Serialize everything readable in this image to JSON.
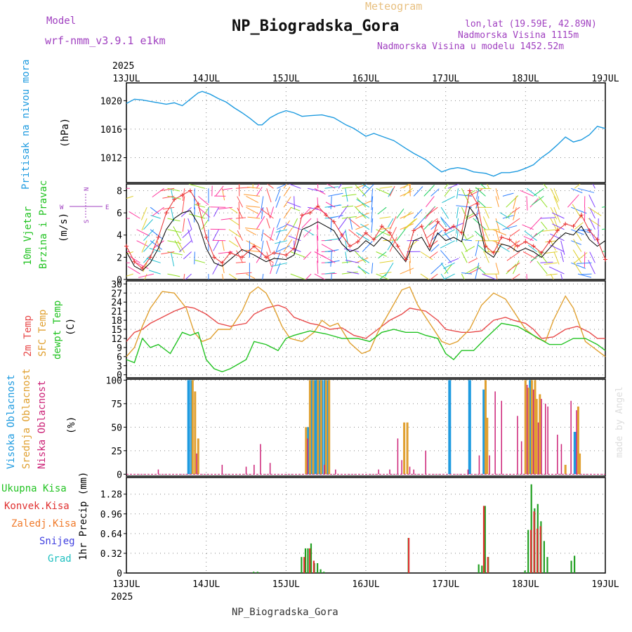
{
  "header": {
    "model_label": "Model",
    "model_name": "wrf-nmm_v3.9.1 e1km",
    "subtitle": "Meteogram",
    "station": "NP_Biogradska_Gora",
    "lonlat": "lon,lat (19.59E, 42.89N)",
    "altitude": "Nadmorska Visina 1115m",
    "model_altitude": "Nadmorska Visina u modelu 1452.52m",
    "watermark": "made by Angel",
    "footer_station": "NP_Biogradska_Gora"
  },
  "colors": {
    "pressure": "#1e9be0",
    "wind_label": "#22c322",
    "wind_speed": "#000000",
    "gust": "#e83030",
    "temp2m": "#e84a4a",
    "sfc": "#e0a030",
    "dewpt": "#22c322",
    "high_cloud": "#1e9be0",
    "mid_cloud": "#e0a030",
    "low_cloud": "#cc2277",
    "total_precip": "#22a022",
    "conv_precip": "#e03030",
    "frozen_precip": "#f07a2a",
    "snow": "#4040e0",
    "hail": "#20c0c0",
    "model_color": "#a040c0",
    "title_color": "#e8c080"
  },
  "time_axis": {
    "year": "2025",
    "labels": [
      "13JUL",
      "14JUL",
      "15JUL",
      "16JUL",
      "17JUL",
      "18JUL",
      "19JUL"
    ]
  },
  "panels": {
    "pressure": {
      "label": "Pritisak na nivou mora",
      "unit": "(hPa)",
      "ticks": [
        "1012",
        "1016",
        "1020"
      ],
      "ylim": [
        1008.5,
        1022.5
      ]
    },
    "wind": {
      "label1": "10m Vjetar",
      "label2": "Brzina i Pravac",
      "unit": "(m/s)",
      "compass": {
        "n": "N",
        "s": "S",
        "e": "E",
        "w": "W"
      },
      "ticks": [
        "0",
        "2",
        "4",
        "6",
        "8"
      ],
      "ylim": [
        0,
        8.6
      ]
    },
    "temp": {
      "label_2m": "2m Temp",
      "label_sfc": "SFC Temp",
      "label_dew": "dewpt Temp",
      "unit": "(C)",
      "ticks": [
        "0",
        "3",
        "6",
        "9",
        "12",
        "15",
        "18",
        "21",
        "24",
        "27",
        "30"
      ],
      "ylim": [
        -1,
        31
      ]
    },
    "cloud": {
      "label_high": "Visoka Oblacnost",
      "label_mid": "Srednja Oblacnost",
      "label_low": "Niska Oblacnost",
      "unit": "(%)",
      "ticks": [
        "0",
        "25",
        "50",
        "75",
        "100"
      ],
      "ylim": [
        -2,
        101
      ]
    },
    "precip": {
      "label_total": "Ukupna Kisa",
      "label_conv": "Konvek.Kisa",
      "label_frozen": "Zaledj.Kisa",
      "label_snow": "Snijeg",
      "label_hail": "Grad",
      "unit": "1hr Precip (mm)",
      "ticks": [
        "0",
        "0.32",
        "0.64",
        "0.96",
        "1.28"
      ],
      "ylim": [
        0,
        1.55
      ]
    }
  },
  "chart_data": [
    {
      "type": "line",
      "title": "Pritisak na nivou mora",
      "ylabel": "(hPa)",
      "x_unit": "days since 13JUL 00UTC",
      "series": [
        {
          "name": "Pritisak na nivou mora",
          "x": [
            0,
            0.1,
            0.2,
            0.3,
            0.4,
            0.5,
            0.6,
            0.7,
            0.8,
            0.9,
            0.95,
            1.05,
            1.15,
            1.25,
            1.35,
            1.45,
            1.55,
            1.65,
            1.7,
            1.8,
            1.9,
            2.0,
            2.1,
            2.2,
            2.3,
            2.45,
            2.6,
            2.75,
            2.85,
            3.0,
            3.1,
            3.2,
            3.35,
            3.5,
            3.6,
            3.75,
            3.85,
            3.95,
            4.05,
            4.15,
            4.25,
            4.35,
            4.5,
            4.6,
            4.7,
            4.8,
            4.9,
            5.0,
            5.1,
            5.2,
            5.3,
            5.4,
            5.5,
            5.6,
            5.7,
            5.8,
            5.9,
            6.0
          ],
          "values": [
            1019.6,
            1020.2,
            1020.1,
            1019.9,
            1019.7,
            1019.5,
            1019.7,
            1019.3,
            1020.2,
            1021.1,
            1021.3,
            1020.9,
            1020.3,
            1019.8,
            1019.0,
            1018.3,
            1017.5,
            1016.6,
            1016.6,
            1017.6,
            1018.2,
            1018.6,
            1018.3,
            1017.8,
            1017.9,
            1018.0,
            1017.6,
            1016.6,
            1016.1,
            1015.0,
            1015.4,
            1015.0,
            1014.4,
            1013.3,
            1012.6,
            1011.7,
            1010.8,
            1010.0,
            1010.4,
            1010.6,
            1010.4,
            1010.0,
            1009.8,
            1009.4,
            1009.9,
            1009.9,
            1010.1,
            1010.5,
            1011.0,
            1012.0,
            1012.8,
            1013.8,
            1014.9,
            1014.2,
            1014.5,
            1015.2,
            1016.4,
            1016.1
          ]
        }
      ],
      "ylim": [
        1008.5,
        1022.5
      ]
    },
    {
      "type": "line",
      "title": "10m Vjetar Brzina i Pravac",
      "ylabel": "(m/s)",
      "series": [
        {
          "name": "speed",
          "x": [
            0,
            0.1,
            0.2,
            0.3,
            0.4,
            0.5,
            0.6,
            0.7,
            0.8,
            0.9,
            1.0,
            1.1,
            1.2,
            1.3,
            1.45,
            1.6,
            1.75,
            1.85,
            2.0,
            2.1,
            2.2,
            2.3,
            2.4,
            2.5,
            2.6,
            2.7,
            2.8,
            2.9,
            3.0,
            3.1,
            3.2,
            3.3,
            3.4,
            3.5,
            3.6,
            3.7,
            3.8,
            3.9,
            4.0,
            4.1,
            4.2,
            4.3,
            4.4,
            4.5,
            4.6,
            4.7,
            4.8,
            4.9,
            5.0,
            5.1,
            5.2,
            5.3,
            5.4,
            5.5,
            5.6,
            5.7,
            5.8,
            5.9,
            6.0
          ],
          "values": [
            2.5,
            1.2,
            0.8,
            1.5,
            2.8,
            4.5,
            5.5,
            6.0,
            6.2,
            5.0,
            2.8,
            1.5,
            1.2,
            1.8,
            2.7,
            2.2,
            1.6,
            1.9,
            1.8,
            2.2,
            4.5,
            4.8,
            5.2,
            4.8,
            4.4,
            3.2,
            2.5,
            2.8,
            3.5,
            3.0,
            3.8,
            3.4,
            2.5,
            1.6,
            3.5,
            3.8,
            2.6,
            4.2,
            3.5,
            3.8,
            3.4,
            6.5,
            5.5,
            2.5,
            2.0,
            3.2,
            3.0,
            2.5,
            2.8,
            2.5,
            2.0,
            2.8,
            3.6,
            4.2,
            4.0,
            4.8,
            3.6,
            3.0,
            3.5
          ]
        },
        {
          "name": "gust",
          "x": [
            0,
            0.1,
            0.2,
            0.3,
            0.4,
            0.5,
            0.6,
            0.7,
            0.8,
            0.9,
            1.0,
            1.1,
            1.2,
            1.3,
            1.45,
            1.6,
            1.75,
            1.85,
            2.0,
            2.1,
            2.2,
            2.3,
            2.4,
            2.5,
            2.6,
            2.7,
            2.8,
            2.9,
            3.0,
            3.1,
            3.2,
            3.3,
            3.4,
            3.5,
            3.6,
            3.7,
            3.8,
            3.9,
            4.0,
            4.1,
            4.2,
            4.3,
            4.4,
            4.5,
            4.6,
            4.7,
            4.8,
            4.9,
            5.0,
            5.1,
            5.2,
            5.3,
            5.4,
            5.5,
            5.6,
            5.7,
            5.8,
            5.9,
            6.0
          ],
          "values": [
            3.0,
            1.6,
            1.0,
            2.0,
            3.8,
            6.0,
            7.2,
            7.6,
            8.0,
            6.8,
            3.8,
            2.0,
            1.5,
            2.4,
            2.0,
            3.0,
            2.0,
            2.4,
            2.2,
            2.8,
            5.8,
            6.0,
            6.6,
            5.8,
            5.2,
            4.0,
            3.0,
            3.4,
            4.2,
            3.6,
            4.8,
            4.2,
            3.0,
            1.8,
            4.4,
            4.8,
            3.0,
            5.2,
            4.4,
            4.8,
            4.2,
            8.0,
            6.8,
            3.0,
            2.4,
            3.8,
            3.6,
            3.0,
            3.4,
            3.0,
            2.4,
            3.4,
            4.4,
            5.0,
            4.8,
            5.8,
            4.4,
            3.6,
            1.8
          ]
        }
      ],
      "ylim": [
        0,
        8.6
      ]
    },
    {
      "type": "line",
      "title": "Temp",
      "ylabel": "(C)",
      "series": [
        {
          "name": "2m Temp",
          "x": [
            0,
            0.1,
            0.2,
            0.3,
            0.45,
            0.6,
            0.75,
            0.85,
            1.0,
            1.15,
            1.3,
            1.5,
            1.6,
            1.75,
            1.9,
            2.0,
            2.1,
            2.3,
            2.4,
            2.55,
            2.7,
            2.85,
            3.0,
            3.15,
            3.3,
            3.45,
            3.55,
            3.75,
            3.9,
            4.0,
            4.2,
            4.3,
            4.45,
            4.6,
            4.75,
            4.85,
            5.0,
            5.1,
            5.2,
            5.35,
            5.5,
            5.65,
            5.8,
            5.9,
            6.0
          ],
          "values": [
            11,
            14,
            15,
            17,
            19,
            21,
            22.5,
            22,
            20,
            17,
            16,
            17,
            20,
            22,
            23,
            22,
            19,
            17,
            16.5,
            15,
            15.5,
            13,
            12,
            15,
            18,
            20,
            22,
            21,
            18,
            15,
            14,
            14,
            14.5,
            18,
            19,
            18,
            17,
            15,
            12,
            12.5,
            15,
            16,
            14,
            12,
            12
          ]
        },
        {
          "name": "SFC Temp",
          "x": [
            0,
            0.1,
            0.2,
            0.3,
            0.45,
            0.6,
            0.75,
            0.85,
            0.95,
            1.05,
            1.15,
            1.3,
            1.45,
            1.55,
            1.65,
            1.75,
            1.85,
            1.95,
            2.05,
            2.2,
            2.35,
            2.45,
            2.55,
            2.65,
            2.8,
            2.95,
            3.05,
            3.15,
            3.3,
            3.45,
            3.55,
            3.65,
            3.8,
            3.95,
            4.05,
            4.15,
            4.3,
            4.45,
            4.6,
            4.75,
            4.9,
            5.0,
            5.15,
            5.25,
            5.35,
            5.5,
            5.6,
            5.75,
            5.9,
            6.0
          ],
          "values": [
            6,
            9,
            16,
            22,
            27.5,
            27,
            22,
            14,
            11,
            12,
            15,
            15,
            21,
            27,
            29,
            27,
            22,
            16,
            12,
            11,
            14,
            18,
            16,
            17,
            10.5,
            7,
            8,
            14,
            21,
            28,
            29,
            23,
            17,
            11,
            10,
            11,
            15,
            23,
            27,
            25,
            19,
            15,
            12,
            11,
            18,
            26,
            22,
            11,
            8,
            6
          ]
        },
        {
          "name": "dewpt Temp",
          "x": [
            0,
            0.1,
            0.2,
            0.3,
            0.4,
            0.55,
            0.7,
            0.8,
            0.9,
            1.0,
            1.1,
            1.2,
            1.3,
            1.5,
            1.6,
            1.75,
            1.9,
            2.0,
            2.1,
            2.3,
            2.5,
            2.7,
            2.9,
            3.05,
            3.2,
            3.35,
            3.5,
            3.65,
            3.75,
            3.9,
            4.0,
            4.1,
            4.2,
            4.35,
            4.5,
            4.7,
            4.9,
            5.1,
            5.3,
            5.45,
            5.6,
            5.75,
            5.9,
            6.0
          ],
          "values": [
            5,
            4,
            12,
            9,
            10,
            7,
            14,
            13,
            14,
            5,
            2,
            1,
            2,
            5,
            11,
            10,
            8,
            12,
            13,
            14.5,
            13.5,
            12,
            12,
            11,
            14,
            15,
            14,
            14,
            13,
            12,
            7,
            5,
            8,
            8,
            12,
            17,
            16,
            13,
            10,
            10,
            12,
            12,
            10,
            8
          ]
        }
      ],
      "ylim": [
        -1,
        31
      ]
    },
    {
      "type": "bar",
      "title": "Oblacnost",
      "ylabel": "(%)",
      "series": [
        {
          "name": "Visoka Oblacnost",
          "x": [
            0.78,
            0.82,
            2.28,
            2.32,
            2.36,
            2.39,
            2.42,
            2.45,
            2.49,
            2.53,
            4.05,
            4.3,
            4.48,
            5.06,
            5.62
          ],
          "values": [
            100,
            100,
            50,
            100,
            100,
            100,
            100,
            100,
            100,
            100,
            100,
            100,
            90,
            100,
            45
          ]
        },
        {
          "name": "Srednja Oblacnost",
          "x": [
            0.83,
            0.86,
            0.9,
            2.25,
            2.3,
            2.34,
            2.4,
            2.44,
            2.5,
            2.54,
            3.48,
            3.52,
            4.5,
            4.52,
            5.0,
            5.04,
            5.08,
            5.12,
            5.14,
            5.18,
            5.5,
            5.66,
            5.68
          ],
          "values": [
            100,
            88,
            38,
            50,
            100,
            100,
            100,
            100,
            100,
            100,
            55,
            55,
            100,
            60,
            100,
            92,
            100,
            100,
            80,
            85,
            10,
            72,
            22
          ]
        },
        {
          "name": "Niska Oblacnost",
          "x": [
            0.4,
            0.88,
            1.2,
            1.5,
            1.6,
            1.68,
            1.8,
            2.27,
            2.48,
            2.62,
            3.16,
            3.3,
            3.4,
            3.45,
            3.55,
            3.6,
            3.75,
            4.28,
            4.42,
            4.55,
            4.62,
            4.7,
            4.9,
            4.95,
            5.02,
            5.1,
            5.16,
            5.2,
            5.25,
            5.28,
            5.4,
            5.45,
            5.57,
            5.64
          ],
          "values": [
            5,
            22,
            10,
            8,
            10,
            32,
            12,
            38,
            10,
            5,
            5,
            5,
            38,
            15,
            8,
            5,
            25,
            5,
            20,
            20,
            88,
            78,
            62,
            35,
            95,
            90,
            55,
            80,
            75,
            72,
            42,
            32,
            78,
            68
          ]
        }
      ],
      "ylim": [
        -2,
        101
      ]
    },
    {
      "type": "bar",
      "title": "1hr Precip",
      "ylabel": "1hr Precip (mm)",
      "series": [
        {
          "name": "Ukupna Kisa",
          "x": [
            1.6,
            1.65,
            2.2,
            2.25,
            2.28,
            2.32,
            2.36,
            2.4,
            2.44,
            2.48,
            3.54,
            4.42,
            4.46,
            4.5,
            4.54,
            5.0,
            5.04,
            5.08,
            5.12,
            5.16,
            5.2,
            5.24,
            5.28,
            5.58,
            5.62
          ],
          "values": [
            0.02,
            0.02,
            0.26,
            0.4,
            0.4,
            0.48,
            0.16,
            0.16,
            0.06,
            0.02,
            0.57,
            0.14,
            0.12,
            1.09,
            0.26,
            0.04,
            0.7,
            1.44,
            1.05,
            1.12,
            0.84,
            0.52,
            0.26,
            0.2,
            0.28
          ]
        },
        {
          "name": "Konvek.Kisa",
          "x": [
            2.22,
            2.29,
            2.34,
            3.53,
            4.47,
            4.52,
            5.06,
            5.1,
            5.14,
            5.18
          ],
          "values": [
            0.26,
            0.4,
            0.2,
            0.57,
            1.09,
            0.26,
            0.7,
            1.0,
            0.72,
            0.76
          ]
        }
      ],
      "ylim": [
        0,
        1.55
      ]
    }
  ]
}
